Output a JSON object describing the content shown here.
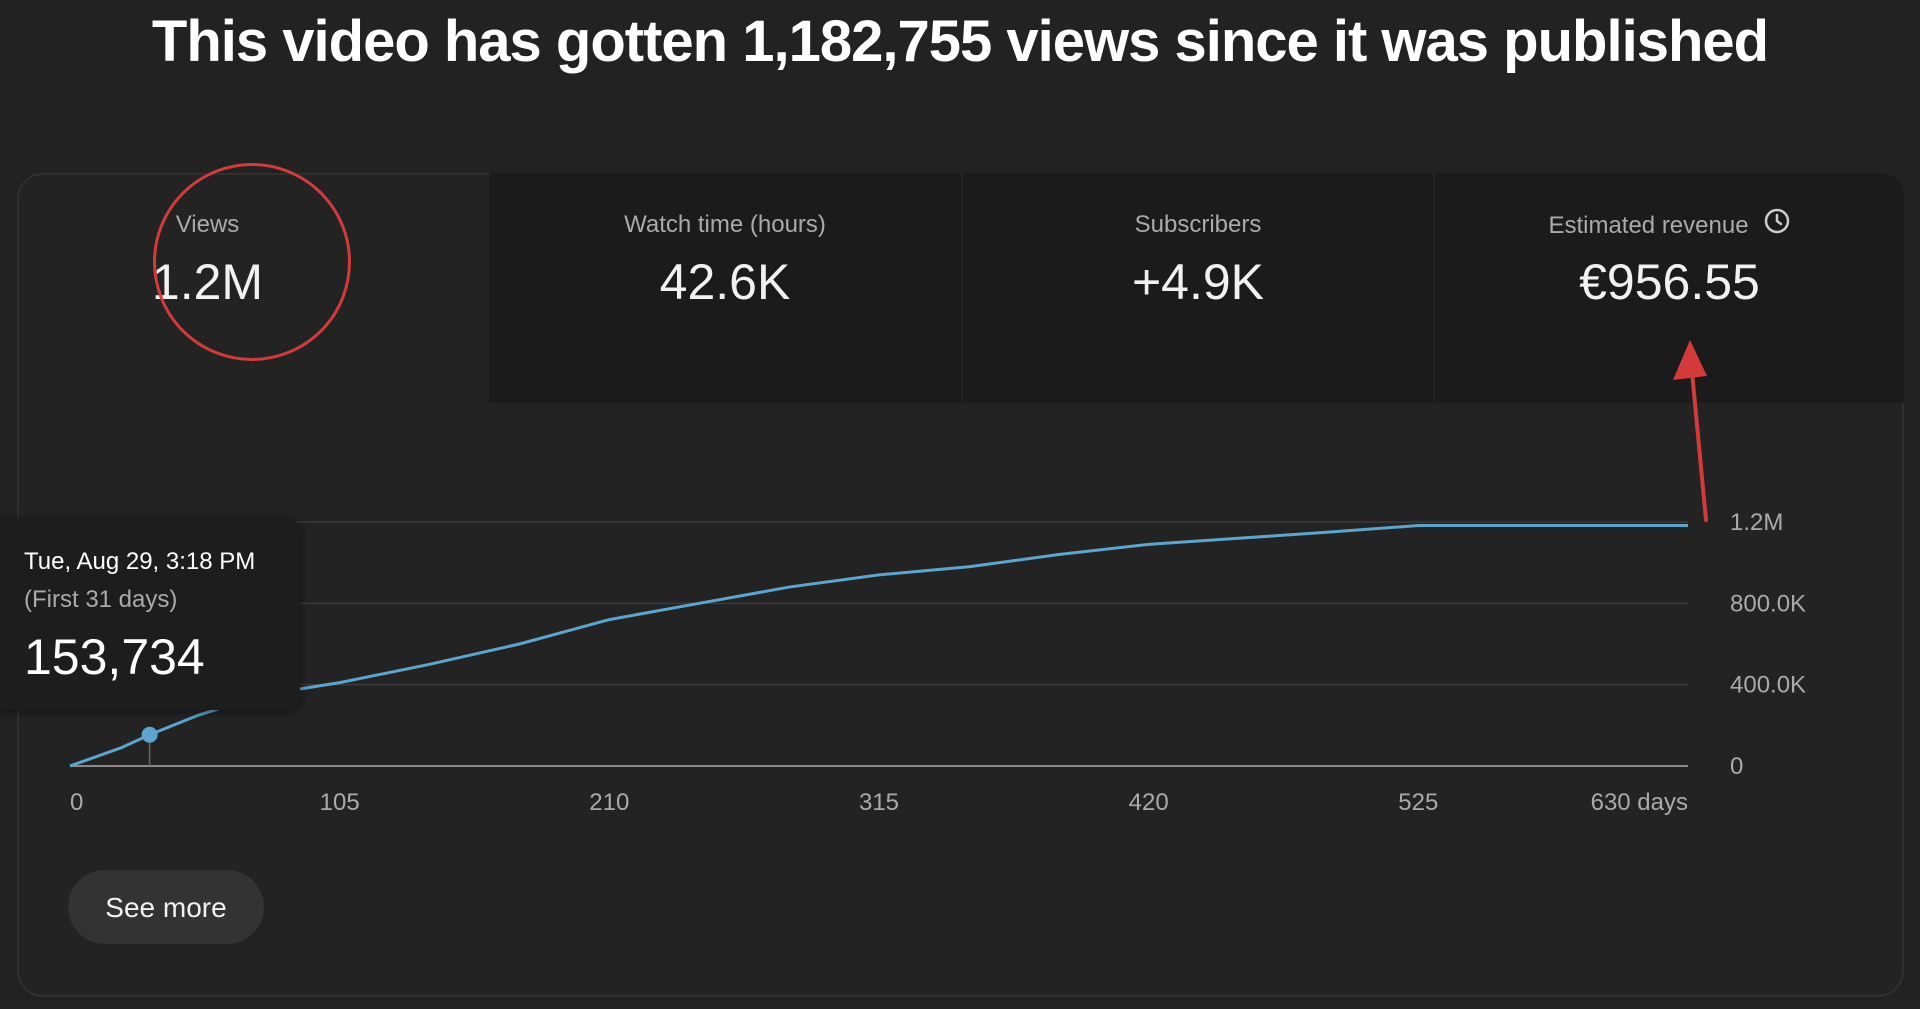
{
  "headline": "This video has gotten 1,182,755 views since it was published",
  "metrics": [
    {
      "label": "Views",
      "value": "1.2M"
    },
    {
      "label": "Watch time (hours)",
      "value": "42.6K"
    },
    {
      "label": "Subscribers",
      "value": "+4.9K"
    },
    {
      "label": "Estimated revenue",
      "value": "€956.55",
      "icon": "clock-icon"
    }
  ],
  "tooltip": {
    "date": "Tue, Aug 29, 3:18 PM",
    "period": "(First 31 days)",
    "value": "153,734"
  },
  "see_more_label": "See more",
  "colors": {
    "line": "#5aa6cf",
    "annotation": "#d33a3a",
    "background": "#222222"
  },
  "chart_data": {
    "type": "line",
    "xlabel": "",
    "ylabel": "",
    "x_ticks": [
      "0",
      "105",
      "210",
      "315",
      "420",
      "525",
      "630 days"
    ],
    "x_tick_values": [
      0,
      105,
      210,
      315,
      420,
      525,
      630
    ],
    "y_ticks": [
      "0",
      "400.0K",
      "800.0K",
      "1.2M"
    ],
    "y_tick_values": [
      0,
      400000,
      800000,
      1200000
    ],
    "xlim": [
      0,
      630
    ],
    "ylim": [
      0,
      1200000
    ],
    "grid": true,
    "series": [
      {
        "x": [
          0,
          20,
          31,
          50,
          70,
          90,
          105,
          140,
          175,
          210,
          245,
          280,
          315,
          350,
          385,
          420,
          455,
          490,
          525,
          560,
          630
        ],
        "y": [
          0,
          90000,
          153734,
          250000,
          330000,
          380000,
          410000,
          500000,
          600000,
          720000,
          800000,
          880000,
          940000,
          980000,
          1040000,
          1090000,
          1120000,
          1150000,
          1182755,
          1182755,
          1182755
        ]
      }
    ],
    "highlight_point": {
      "x": 31,
      "y": 153734
    }
  }
}
